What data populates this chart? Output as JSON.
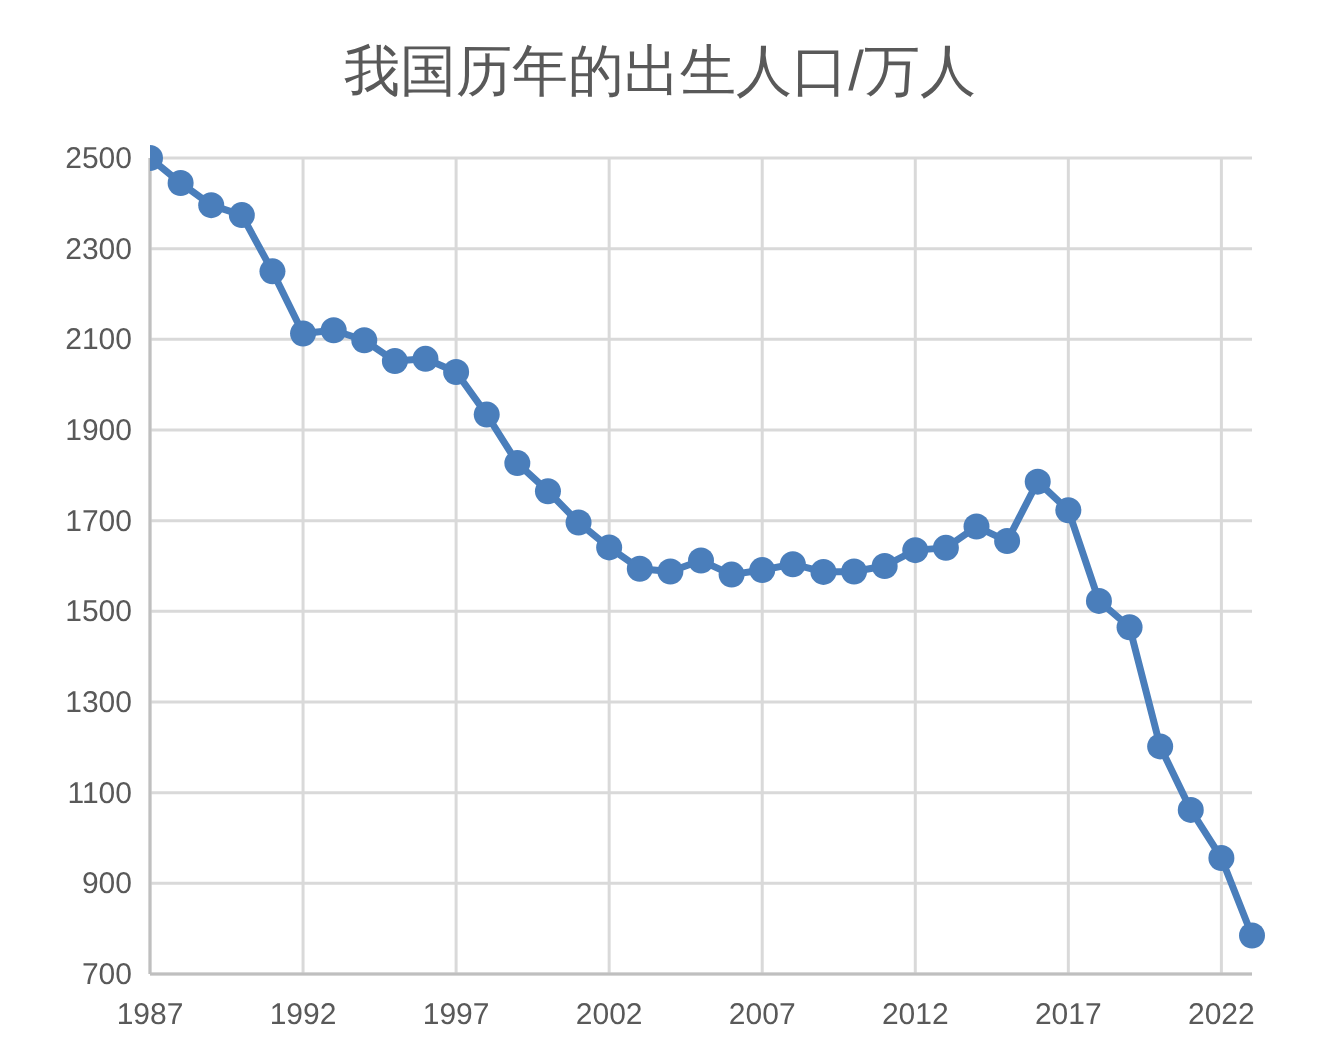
{
  "chart_data": {
    "type": "line",
    "title": "我国历年的出生人口/万人",
    "x": [
      1987,
      1988,
      1989,
      1990,
      1991,
      1992,
      1993,
      1994,
      1995,
      1996,
      1997,
      1998,
      1999,
      2000,
      2001,
      2002,
      2003,
      2004,
      2005,
      2006,
      2007,
      2008,
      2009,
      2010,
      2011,
      2012,
      2013,
      2014,
      2015,
      2016,
      2017,
      2018,
      2019,
      2020,
      2021,
      2022,
      2023
    ],
    "series": [
      {
        "color": "#4a7ebb",
        "values": [
          2500,
          2445,
          2396,
          2374,
          2250,
          2113,
          2120,
          2098,
          2052,
          2057,
          2028,
          1934,
          1827,
          1765,
          1696,
          1641,
          1594,
          1588,
          1612,
          1581,
          1591,
          1604,
          1587,
          1588,
          1600,
          1635,
          1640,
          1687,
          1655,
          1786,
          1723,
          1523,
          1465,
          1202,
          1062,
          956,
          785
        ]
      }
    ],
    "xlim": [
      1987,
      2023
    ],
    "xticks": [
      1987,
      1992,
      1997,
      2002,
      2007,
      2012,
      2017,
      2022
    ],
    "ylim": [
      700,
      2500
    ],
    "yticks": [
      700,
      900,
      1100,
      1300,
      1500,
      1700,
      1900,
      2100,
      2300,
      2500
    ],
    "grid": true,
    "marker": "circle",
    "line_style": "solid"
  }
}
